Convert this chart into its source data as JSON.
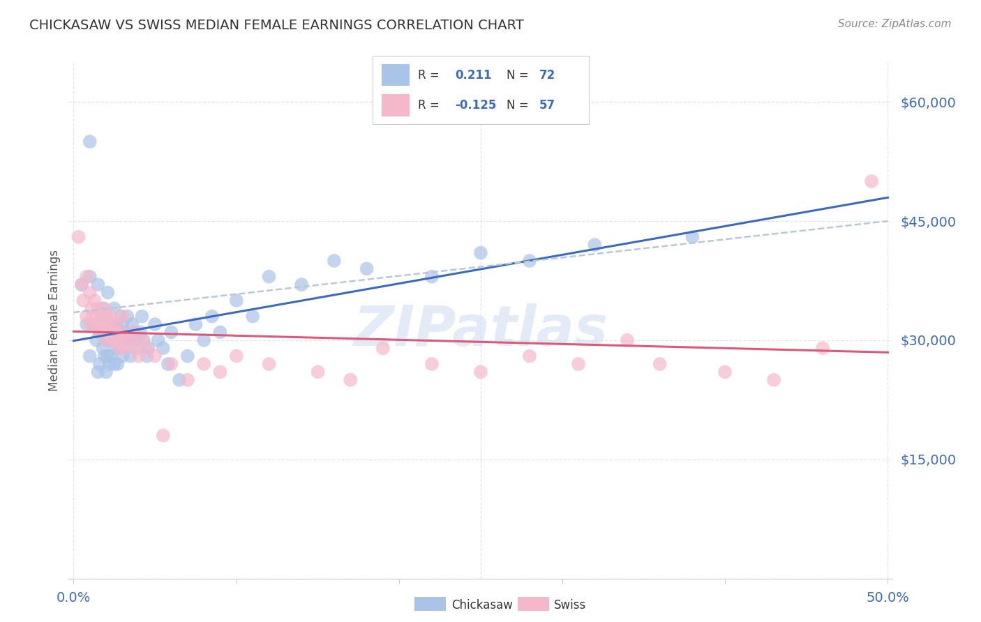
{
  "title": "CHICKASAW VS SWISS MEDIAN FEMALE EARNINGS CORRELATION CHART",
  "source": "Source: ZipAtlas.com",
  "ylabel": "Median Female Earnings",
  "xlim": [
    -0.003,
    0.503
  ],
  "ylim": [
    0,
    65000
  ],
  "yticks": [
    0,
    15000,
    30000,
    45000,
    60000
  ],
  "ytick_labels": [
    "",
    "$15,000",
    "$30,000",
    "$45,000",
    "$60,000"
  ],
  "xticks": [
    0.0,
    0.1,
    0.2,
    0.3,
    0.4,
    0.5
  ],
  "xtick_labels": [
    "0.0%",
    "",
    "",
    "",
    "",
    "50.0%"
  ],
  "chickasaw_color": "#aac4e8",
  "swiss_color": "#f5b8cb",
  "chickasaw_line_color": "#3b6abf",
  "swiss_line_color": "#e05878",
  "trendline_gray_color": "#b8c8d8",
  "background_color": "#ffffff",
  "grid_color": "#dde5f0",
  "title_color": "#333333",
  "axis_label_color": "#555555",
  "tick_label_color": "#3b6abf",
  "source_color": "#888888",
  "watermark_text": "ZIPatlas",
  "watermark_color": "#ccddf0",
  "R_chickasaw": 0.211,
  "N_chickasaw": 72,
  "R_swiss": -0.125,
  "N_swiss": 57,
  "chickasaw_x": [
    0.005,
    0.008,
    0.01,
    0.01,
    0.01,
    0.012,
    0.014,
    0.015,
    0.015,
    0.016,
    0.016,
    0.017,
    0.018,
    0.018,
    0.019,
    0.02,
    0.02,
    0.02,
    0.02,
    0.021,
    0.021,
    0.022,
    0.022,
    0.023,
    0.024,
    0.025,
    0.025,
    0.026,
    0.026,
    0.027,
    0.028,
    0.028,
    0.029,
    0.03,
    0.03,
    0.03,
    0.031,
    0.032,
    0.033,
    0.034,
    0.035,
    0.036,
    0.037,
    0.038,
    0.04,
    0.041,
    0.042,
    0.043,
    0.045,
    0.046,
    0.05,
    0.052,
    0.055,
    0.058,
    0.06,
    0.065,
    0.07,
    0.075,
    0.08,
    0.085,
    0.09,
    0.1,
    0.11,
    0.12,
    0.14,
    0.16,
    0.18,
    0.22,
    0.25,
    0.28,
    0.32,
    0.38
  ],
  "chickasaw_y": [
    37000,
    32000,
    55000,
    38000,
    28000,
    32000,
    30000,
    26000,
    37000,
    27000,
    31000,
    33000,
    29000,
    34000,
    28000,
    30000,
    26000,
    33000,
    31000,
    28000,
    36000,
    27000,
    30000,
    28000,
    32000,
    27000,
    34000,
    29000,
    32000,
    27000,
    31000,
    29000,
    33000,
    30000,
    28000,
    32000,
    31000,
    29000,
    33000,
    30000,
    28000,
    32000,
    31000,
    30000,
    29000,
    31000,
    33000,
    30000,
    28000,
    29000,
    32000,
    30000,
    29000,
    27000,
    31000,
    25000,
    28000,
    32000,
    30000,
    33000,
    31000,
    35000,
    33000,
    38000,
    37000,
    40000,
    39000,
    38000,
    41000,
    40000,
    42000,
    43000
  ],
  "swiss_x": [
    0.003,
    0.005,
    0.006,
    0.008,
    0.008,
    0.01,
    0.01,
    0.011,
    0.012,
    0.013,
    0.014,
    0.015,
    0.016,
    0.017,
    0.018,
    0.019,
    0.02,
    0.02,
    0.021,
    0.022,
    0.023,
    0.024,
    0.025,
    0.026,
    0.027,
    0.028,
    0.029,
    0.03,
    0.03,
    0.032,
    0.035,
    0.037,
    0.038,
    0.04,
    0.042,
    0.045,
    0.05,
    0.055,
    0.06,
    0.07,
    0.08,
    0.09,
    0.1,
    0.12,
    0.15,
    0.17,
    0.19,
    0.22,
    0.25,
    0.28,
    0.31,
    0.34,
    0.36,
    0.4,
    0.43,
    0.46,
    0.49
  ],
  "swiss_y": [
    43000,
    37000,
    35000,
    38000,
    33000,
    36000,
    32000,
    34000,
    33000,
    35000,
    32000,
    34000,
    31000,
    33000,
    32000,
    34000,
    30000,
    33000,
    31000,
    32000,
    33000,
    30000,
    32000,
    31000,
    30000,
    29000,
    31000,
    30000,
    33000,
    29000,
    30000,
    31000,
    29000,
    28000,
    30000,
    29000,
    28000,
    18000,
    27000,
    25000,
    27000,
    26000,
    28000,
    27000,
    26000,
    25000,
    29000,
    27000,
    26000,
    28000,
    27000,
    30000,
    27000,
    26000,
    25000,
    29000,
    50000
  ],
  "gray_line_x0": 0.0,
  "gray_line_x1": 0.5,
  "gray_line_y0": 33500,
  "gray_line_y1": 45000
}
